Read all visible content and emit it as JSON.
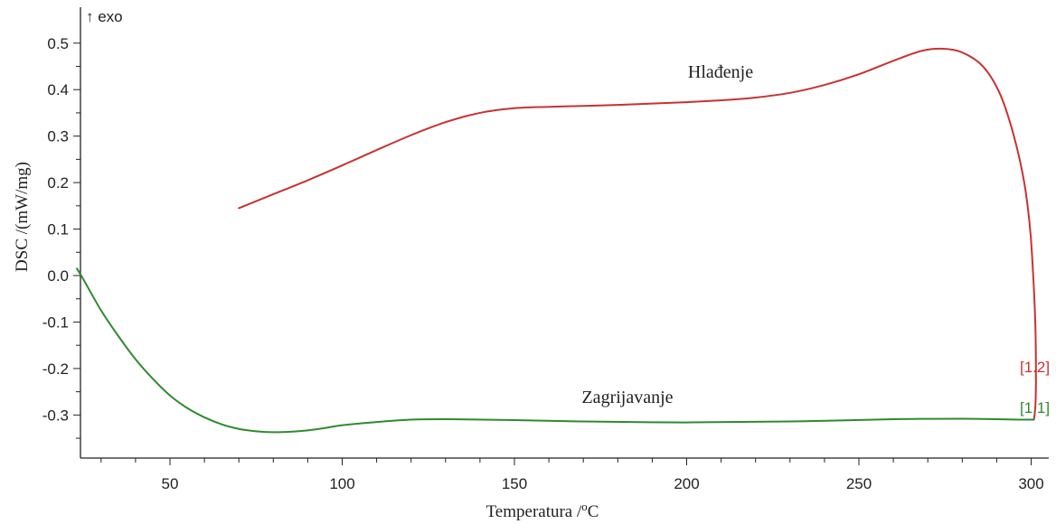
{
  "chart_data": {
    "type": "line",
    "title": "",
    "xlabel": "Temperatura /",
    "xlabel_unit_super": "o",
    "xlabel_unit": "C",
    "ylabel": "DSC /(mW/mg)",
    "exo_label": "↑ exo",
    "xlim": [
      22,
      304
    ],
    "ylim": [
      -0.39,
      0.53
    ],
    "x_ticks": [
      50,
      100,
      150,
      200,
      250,
      300
    ],
    "y_ticks": [
      0.5,
      0.4,
      0.3,
      0.2,
      0.1,
      0.0,
      -0.1,
      -0.2,
      -0.3
    ],
    "grid": false,
    "series": [
      {
        "name": "Hlađenje",
        "color": "#c83232",
        "marker": "[1.2]",
        "points": [
          [
            70,
            0.145
          ],
          [
            80,
            0.175
          ],
          [
            90,
            0.205
          ],
          [
            100,
            0.237
          ],
          [
            110,
            0.27
          ],
          [
            120,
            0.302
          ],
          [
            130,
            0.33
          ],
          [
            140,
            0.35
          ],
          [
            150,
            0.36
          ],
          [
            160,
            0.363
          ],
          [
            170,
            0.365
          ],
          [
            180,
            0.367
          ],
          [
            190,
            0.37
          ],
          [
            200,
            0.373
          ],
          [
            210,
            0.377
          ],
          [
            220,
            0.383
          ],
          [
            230,
            0.393
          ],
          [
            240,
            0.41
          ],
          [
            250,
            0.433
          ],
          [
            260,
            0.462
          ],
          [
            268,
            0.483
          ],
          [
            274,
            0.488
          ],
          [
            280,
            0.48
          ],
          [
            286,
            0.45
          ],
          [
            291,
            0.39
          ],
          [
            295,
            0.3
          ],
          [
            298,
            0.2
          ],
          [
            299.7,
            0.1
          ],
          [
            300.6,
            0.0
          ],
          [
            301.2,
            -0.1
          ],
          [
            301.4,
            -0.2
          ],
          [
            301.3,
            -0.27
          ],
          [
            301.0,
            -0.3
          ],
          [
            300.8,
            -0.31
          ]
        ]
      },
      {
        "name": "Zagrijavanje",
        "color": "#2e8b2e",
        "marker": "[1.1]",
        "points": [
          [
            23,
            0.015
          ],
          [
            25,
            -0.01
          ],
          [
            30,
            -0.075
          ],
          [
            35,
            -0.13
          ],
          [
            40,
            -0.18
          ],
          [
            45,
            -0.222
          ],
          [
            50,
            -0.258
          ],
          [
            55,
            -0.285
          ],
          [
            60,
            -0.305
          ],
          [
            65,
            -0.32
          ],
          [
            70,
            -0.33
          ],
          [
            75,
            -0.335
          ],
          [
            80,
            -0.337
          ],
          [
            85,
            -0.336
          ],
          [
            90,
            -0.333
          ],
          [
            95,
            -0.328
          ],
          [
            100,
            -0.322
          ],
          [
            110,
            -0.315
          ],
          [
            120,
            -0.31
          ],
          [
            130,
            -0.309
          ],
          [
            150,
            -0.311
          ],
          [
            170,
            -0.314
          ],
          [
            200,
            -0.316
          ],
          [
            230,
            -0.314
          ],
          [
            260,
            -0.309
          ],
          [
            280,
            -0.308
          ],
          [
            290,
            -0.309
          ],
          [
            296,
            -0.31
          ],
          [
            300.8,
            -0.31
          ]
        ]
      }
    ]
  }
}
